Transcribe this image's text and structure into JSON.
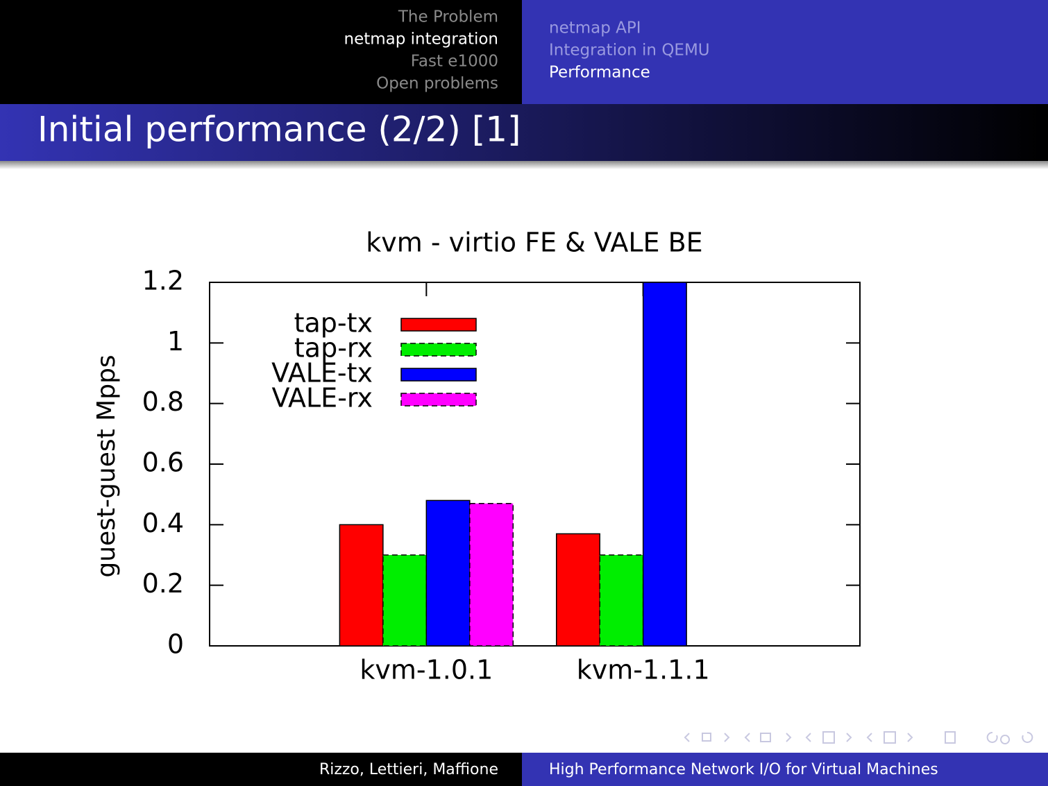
{
  "header": {
    "sections": [
      "The Problem",
      "netmap integration",
      "Fast e1000",
      "Open problems"
    ],
    "current_section": 1,
    "subsections": [
      "netmap API",
      "Integration in QEMU",
      "Performance"
    ],
    "current_subsection": 2,
    "title": "Initial performance (2/2) [1]"
  },
  "chart_data": {
    "type": "bar",
    "title": "kvm - virtio FE & VALE BE",
    "y_label": "guest-guest Mpps",
    "categories": [
      "kvm-1.0.1",
      "kvm-1.1.1"
    ],
    "series": [
      {
        "name": "tap-tx",
        "color": "#ff0000",
        "values": [
          0.4,
          0.37
        ]
      },
      {
        "name": "tap-rx",
        "color": "#00ee00",
        "values": [
          0.3,
          0.3
        ]
      },
      {
        "name": "VALE-tx",
        "color": "#0000ff",
        "values": [
          0.48,
          1.2
        ]
      },
      {
        "name": "VALE-rx",
        "color": "#ff00ff",
        "values": [
          0.47,
          0
        ]
      }
    ],
    "ylim": [
      0,
      1.2
    ],
    "yticks": [
      0,
      0.2,
      0.4,
      0.6,
      0.8,
      1,
      1.2
    ],
    "legend": "upper-left"
  },
  "footer": {
    "authors": "Rizzo, Lettieri, Maffione",
    "talk": "High Performance Network I/O for Virtual Machines"
  }
}
